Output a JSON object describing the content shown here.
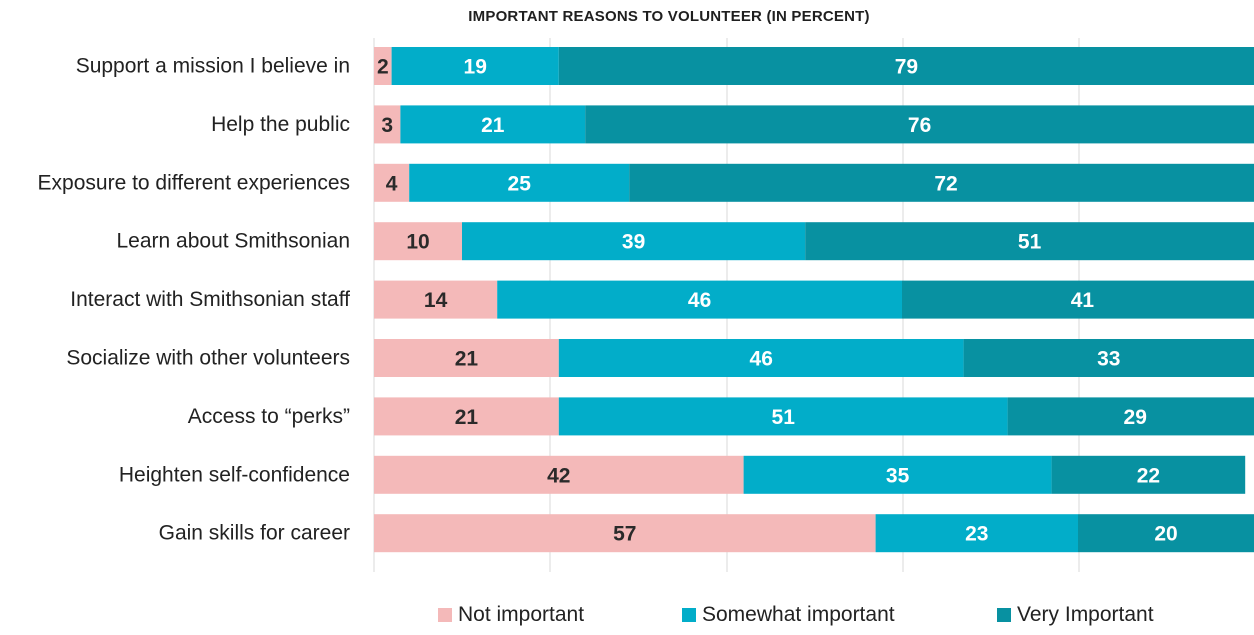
{
  "chart_data": {
    "type": "bar",
    "orientation": "horizontal",
    "stacked": true,
    "title": "IMPORTANT REASONS TO VOLUNTEER (IN PERCENT)",
    "categories": [
      "Support a mission I believe in",
      "Help the public",
      "Exposure to different experiences",
      "Learn about Smithsonian",
      "Interact with Smithsonian staff",
      "Socialize with other volunteers",
      "Access to “perks”",
      "Heighten self-confidence",
      "Gain skills for career"
    ],
    "series": [
      {
        "name": "Not important",
        "color": "#f4b9b9",
        "label_color": "#2a2a2a",
        "values": [
          2,
          3,
          4,
          10,
          14,
          21,
          21,
          42,
          57
        ]
      },
      {
        "name": "Somewhat important",
        "color": "#02adc9",
        "label_color": "#ffffff",
        "values": [
          19,
          21,
          25,
          39,
          46,
          46,
          51,
          35,
          23
        ]
      },
      {
        "name": "Very Important",
        "color": "#0891a1",
        "label_color": "#ffffff",
        "values": [
          79,
          76,
          72,
          51,
          41,
          33,
          29,
          22,
          20
        ]
      }
    ],
    "xlim": [
      0,
      100
    ],
    "grid": true,
    "legend_position": "bottom"
  }
}
